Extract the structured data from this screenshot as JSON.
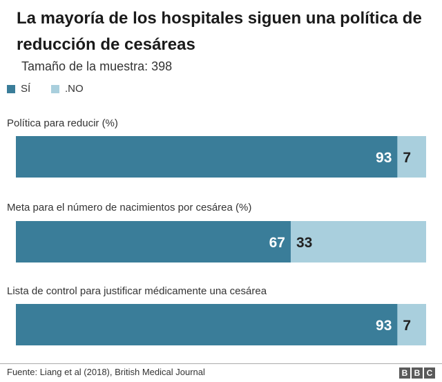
{
  "chart_data": {
    "type": "bar",
    "stacked": true,
    "orientation": "horizontal",
    "title": "La mayoría de los hospitales siguen una política de reducción de cesáreas",
    "subtitle": "Tamaño de la muestra: 398",
    "categories": [
      "Política para reducir (%)",
      "Meta para el número de nacimientos por cesárea (%)",
      "Lista de control para justificar médicamente una cesárea"
    ],
    "series": [
      {
        "name": "SÍ",
        "values": [
          93,
          67,
          93
        ],
        "color": "#3a7d99"
      },
      {
        "name": ".NO",
        "values": [
          7,
          33,
          7
        ],
        "color": "#a9cfdd"
      }
    ],
    "xlim": [
      0,
      100
    ],
    "legend": "top-left",
    "grid": false
  },
  "footer": {
    "source": "Fuente: Liang et al (2018), British Medical Journal",
    "logo_letters": [
      "B",
      "B",
      "C"
    ]
  },
  "colors": {
    "title": "#1a1a1a",
    "label_on_dark": "#ffffff",
    "label_on_light": "#222222"
  }
}
